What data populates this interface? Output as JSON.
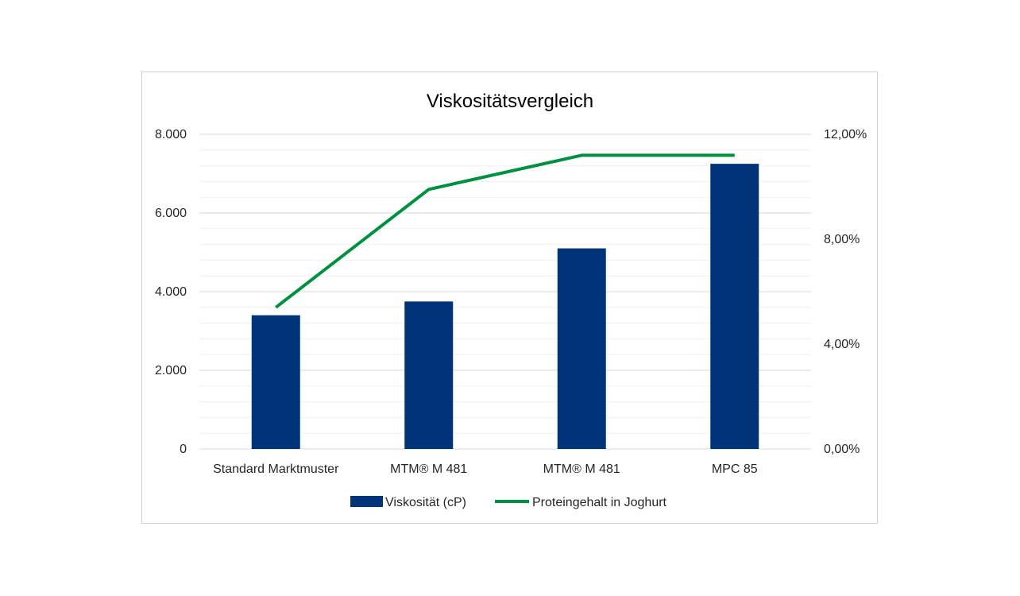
{
  "chart_data": {
    "type": "bar",
    "title": "Viskositätsvergleich",
    "categories": [
      "Standard Marktmuster",
      "MTM® M 481",
      "MTM® M 481",
      "MPC 85"
    ],
    "series": [
      {
        "name": "Viskosität (cP)",
        "type": "bar",
        "axis": "left",
        "color": "#003378",
        "values": [
          3400,
          3750,
          5100,
          7250
        ]
      },
      {
        "name": "Proteingehalt in Joghurt",
        "type": "line",
        "axis": "right",
        "color": "#00913f",
        "values": [
          5.4,
          9.9,
          11.2,
          11.2
        ]
      }
    ],
    "y_left": {
      "ylim": [
        0,
        8000
      ],
      "ticks": [
        0,
        2000,
        4000,
        6000,
        8000
      ],
      "tick_labels": [
        "0",
        "2.000",
        "4.000",
        "6.000",
        "8.000"
      ]
    },
    "y_right": {
      "ylim": [
        0,
        12
      ],
      "ticks": [
        0,
        4,
        8,
        12
      ],
      "tick_labels": [
        "0,00%",
        "4,00%",
        "8,00%",
        "12,00%"
      ]
    },
    "grid": true,
    "legend": "bottom"
  }
}
